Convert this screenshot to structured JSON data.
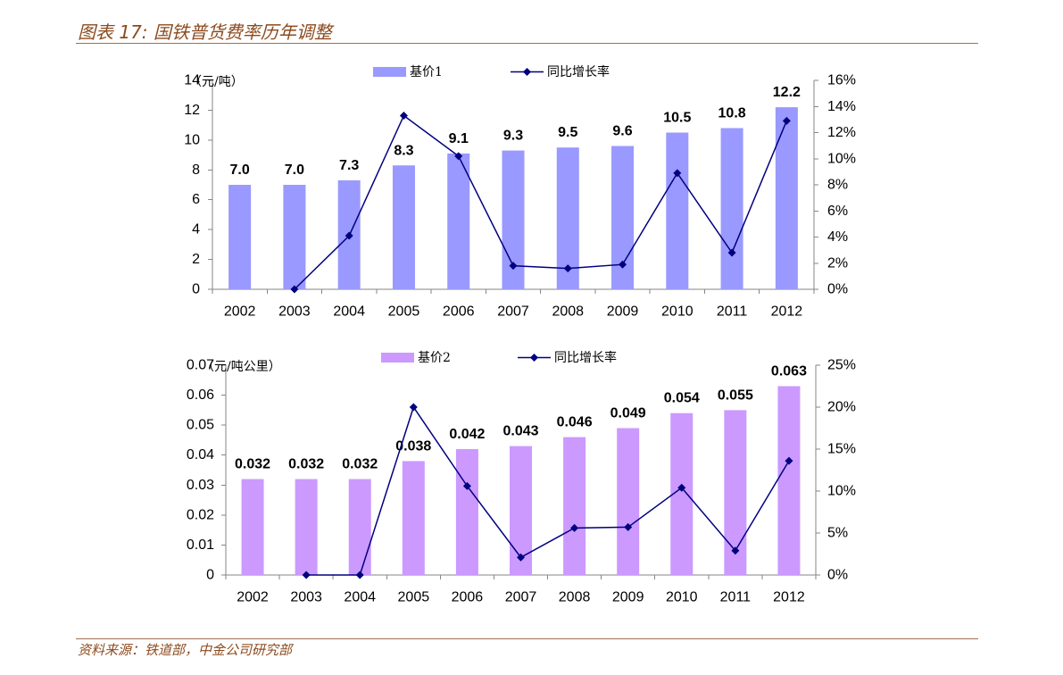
{
  "header": {
    "title": "图表 17: 国铁普货费率历年调整"
  },
  "footer": {
    "source": "资料来源：铁道部，中金公司研究部"
  },
  "colors": {
    "caption_text": "#8C4A1E",
    "rule": "#A0714F",
    "axis": "#868686"
  },
  "chart_data": [
    {
      "type": "bar",
      "categories": [
        "2002",
        "2003",
        "2004",
        "2005",
        "2006",
        "2007",
        "2008",
        "2009",
        "2010",
        "2011",
        "2012"
      ],
      "series": [
        {
          "name": "基价1",
          "color": "#9999FF",
          "values": [
            7.0,
            7.0,
            7.3,
            8.3,
            9.1,
            9.3,
            9.5,
            9.6,
            10.5,
            10.8,
            12.2
          ],
          "labels": [
            "7.0",
            "7.0",
            "7.3",
            "8.3",
            "9.1",
            "9.3",
            "9.5",
            "9.6",
            "10.5",
            "10.8",
            "12.2"
          ]
        },
        {
          "name": "同比增长率",
          "color": "#000080",
          "values": [
            null,
            0.0,
            4.1,
            13.3,
            10.2,
            1.8,
            1.6,
            1.9,
            8.9,
            2.8,
            12.9
          ]
        }
      ],
      "ylabel": "（元/吨）",
      "ylim": [
        0,
        14
      ],
      "y_ticks": [
        "0",
        "2",
        "4",
        "6",
        "8",
        "10",
        "12",
        "14"
      ],
      "y2lim": [
        0,
        16
      ],
      "y2_ticks": [
        "0%",
        "2%",
        "4%",
        "6%",
        "8%",
        "10%",
        "12%",
        "14%",
        "16%"
      ],
      "legend": "top",
      "grid": false
    },
    {
      "type": "bar",
      "categories": [
        "2002",
        "2003",
        "2004",
        "2005",
        "2006",
        "2007",
        "2008",
        "2009",
        "2010",
        "2011",
        "2012"
      ],
      "series": [
        {
          "name": "基价2",
          "color": "#CC99FF",
          "values": [
            0.032,
            0.032,
            0.032,
            0.038,
            0.042,
            0.043,
            0.046,
            0.049,
            0.054,
            0.055,
            0.063
          ],
          "labels": [
            "0.032",
            "0.032",
            "0.032",
            "0.038",
            "0.042",
            "0.043",
            "0.046",
            "0.049",
            "0.054",
            "0.055",
            "0.063"
          ]
        },
        {
          "name": "同比增长率",
          "color": "#000080",
          "values": [
            null,
            0.0,
            0.0,
            20.0,
            10.6,
            2.1,
            5.6,
            5.7,
            10.4,
            2.9,
            13.6
          ]
        }
      ],
      "ylabel": "（元/吨公里）",
      "ylim": [
        0,
        0.07
      ],
      "y_ticks": [
        "0",
        "0.01",
        "0.02",
        "0.03",
        "0.04",
        "0.05",
        "0.06",
        "0.07"
      ],
      "y2lim": [
        0,
        25
      ],
      "y2_ticks": [
        "0%",
        "5%",
        "10%",
        "15%",
        "20%",
        "25%"
      ],
      "legend": "top",
      "grid": false
    }
  ]
}
